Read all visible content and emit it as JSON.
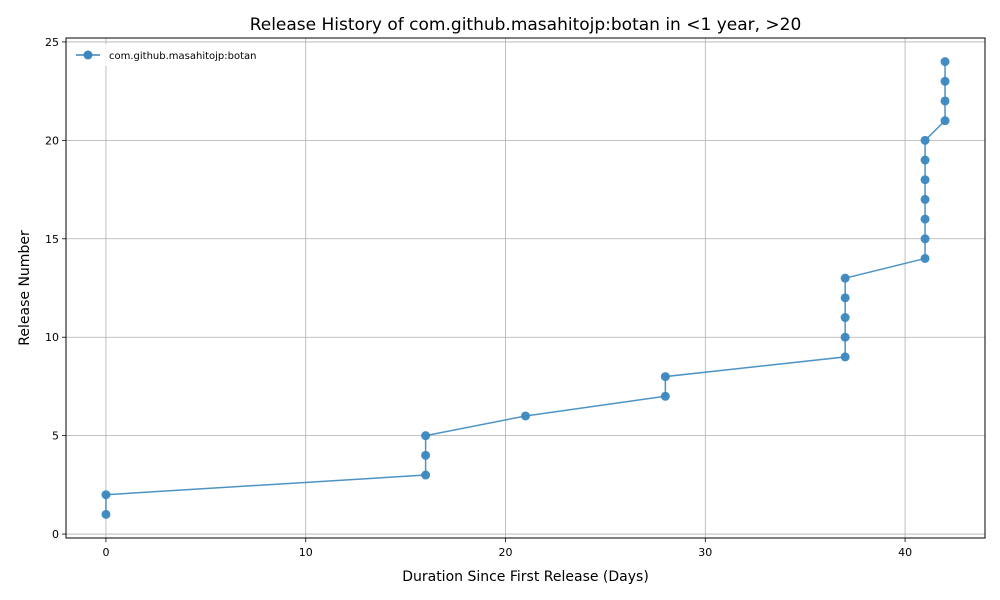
{
  "chart_data": {
    "type": "line",
    "title": "Release History of com.github.masahitojp:botan in <1 year, >20",
    "xlabel": "Duration Since First Release (Days)",
    "ylabel": "Release Number",
    "xlim": [
      -2,
      44
    ],
    "ylim": [
      -0.2,
      25.2
    ],
    "xticks": [
      0,
      10,
      20,
      30,
      40
    ],
    "yticks": [
      0,
      5,
      10,
      15,
      20,
      25
    ],
    "grid": true,
    "legend_position": "top-left",
    "series": [
      {
        "name": "com.github.masahitojp:botan",
        "color": "#3a87bf",
        "marker": "circle",
        "x": [
          0,
          0,
          16,
          16,
          16,
          21,
          28,
          28,
          37,
          37,
          37,
          37,
          37,
          41,
          41,
          41,
          41,
          41,
          41,
          41,
          42,
          42,
          42,
          42
        ],
        "y": [
          1,
          2,
          3,
          4,
          5,
          6,
          7,
          8,
          9,
          10,
          11,
          12,
          13,
          14,
          15,
          16,
          17,
          18,
          19,
          20,
          21,
          22,
          23,
          24
        ]
      }
    ]
  }
}
